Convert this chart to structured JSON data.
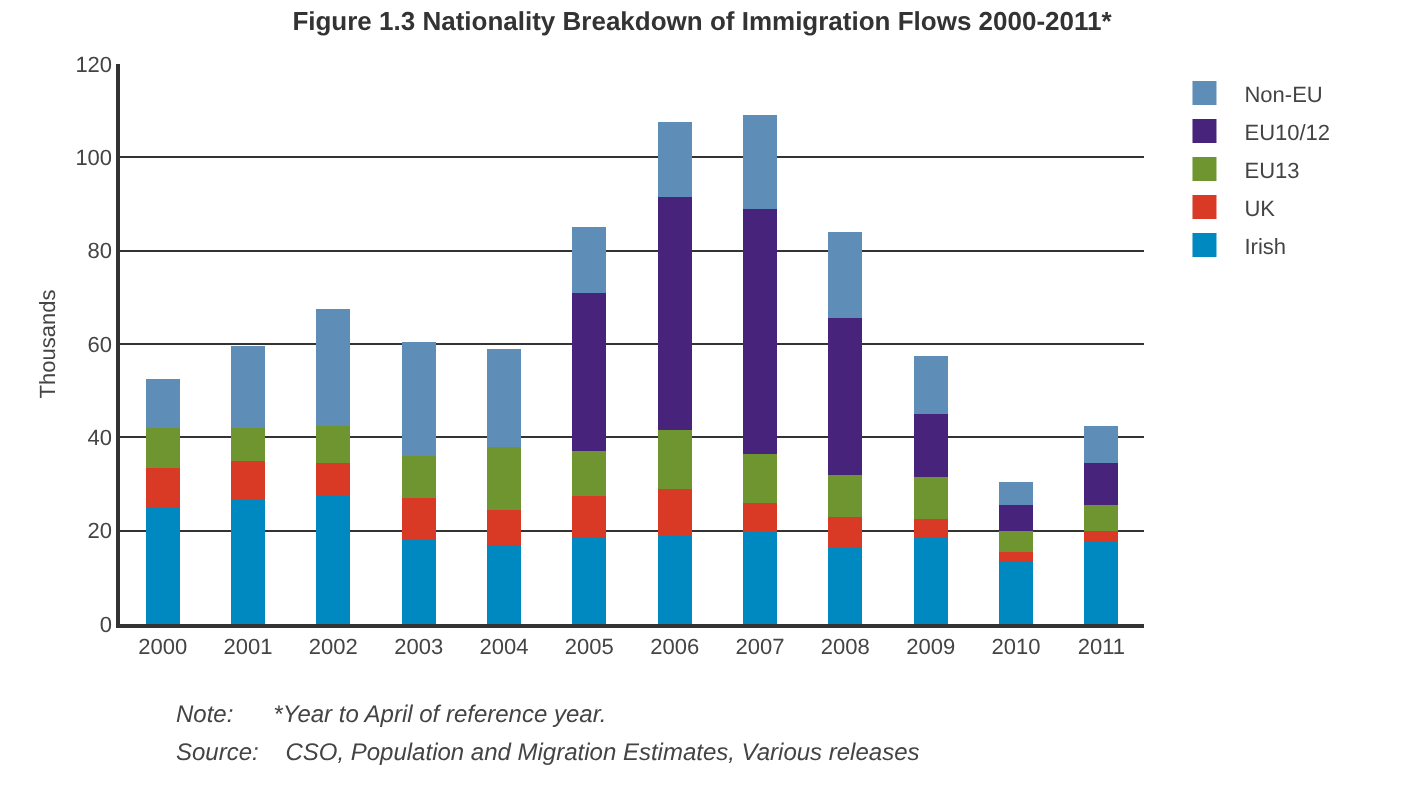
{
  "chart_data": {
    "type": "bar",
    "title": "Figure 1.3 Nationality Breakdown of Immigration Flows 2000-2011*",
    "ylabel": "Thousands",
    "categories": [
      "2000",
      "2001",
      "2002",
      "2003",
      "2004",
      "2005",
      "2006",
      "2007",
      "2008",
      "2009",
      "2010",
      "2011"
    ],
    "stacked": true,
    "series": [
      {
        "name": "Irish",
        "color": "#0088c0",
        "values": [
          25,
          26.5,
          27.5,
          18,
          17,
          18.5,
          19,
          20,
          16.5,
          18.5,
          13.5,
          17.5
        ]
      },
      {
        "name": "UK",
        "color": "#d93a25",
        "values": [
          8.5,
          8.5,
          7,
          9,
          7.5,
          9,
          10,
          6,
          6.5,
          4,
          2,
          2.5
        ]
      },
      {
        "name": "EU13",
        "color": "#6e9530",
        "values": [
          8.5,
          7,
          8,
          9,
          13.5,
          9.5,
          12.5,
          10.5,
          9,
          9,
          4.5,
          5.5
        ]
      },
      {
        "name": "EU10/12",
        "color": "#47237c",
        "values": [
          0,
          0,
          0,
          0,
          0,
          34,
          50,
          52.5,
          33.5,
          13.5,
          5.5,
          9
        ]
      },
      {
        "name": "Non-EU",
        "color": "#5e8db7",
        "values": [
          10.5,
          17.5,
          25,
          24.5,
          21,
          14,
          16,
          20,
          18.5,
          12.5,
          5,
          8
        ]
      }
    ],
    "ylim": [
      0,
      120
    ],
    "yticks": [
      0,
      20,
      40,
      60,
      80,
      100,
      120
    ],
    "grid": "y",
    "legend": "top right",
    "annotations": [
      "Note:      *Year to April of reference year.",
      "Source:    CSO, Population and Migration Estimates, Various releases"
    ]
  }
}
